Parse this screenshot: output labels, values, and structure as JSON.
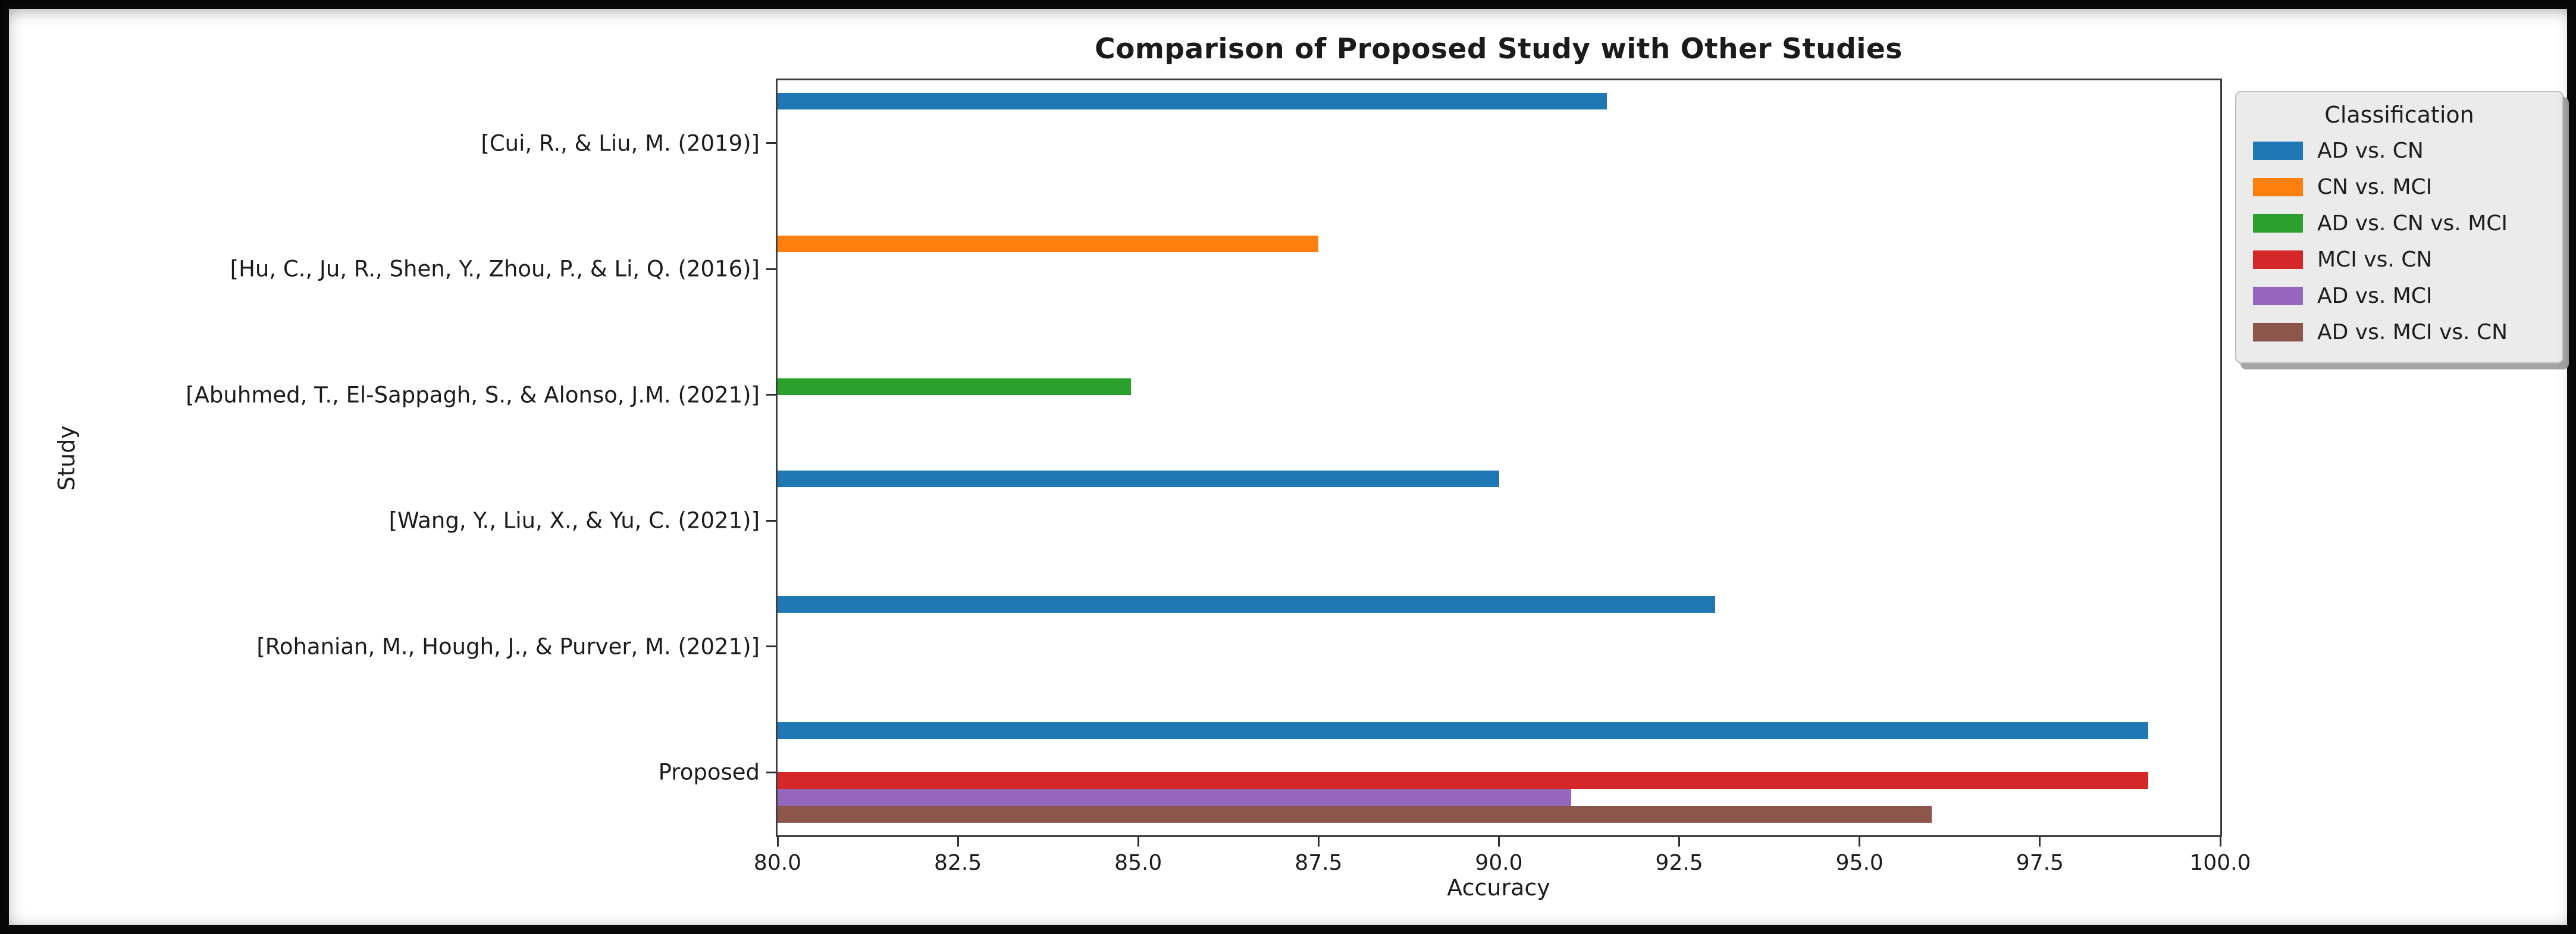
{
  "chart_data": {
    "type": "bar",
    "orientation": "horizontal",
    "title": "Comparison of Proposed Study with Other Studies",
    "xlabel": "Accuracy",
    "ylabel": "Study",
    "xlim": [
      80.0,
      100.0
    ],
    "xticks": [
      80.0,
      82.5,
      85.0,
      87.5,
      90.0,
      92.5,
      95.0,
      97.5,
      100.0
    ],
    "xtick_labels": [
      "80.0",
      "82.5",
      "85.0",
      "87.5",
      "90.0",
      "92.5",
      "95.0",
      "97.5",
      "100.0"
    ],
    "grid": false,
    "categories": [
      "[Cui, R., & Liu, M. (2019)]",
      "[Hu, C., Ju, R., Shen, Y., Zhou, P., & Li, Q. (2016)]",
      "[Abuhmed, T., El-Sappagh, S., & Alonso, J.M. (2021)]",
      "[Wang, Y., Liu, X., & Yu, C. (2021)]",
      "[Rohanian, M., Hough, J., & Purver, M. (2021)]",
      "Proposed"
    ],
    "series": [
      {
        "name": "AD vs. CN",
        "color": "#1f77b4",
        "values": [
          91.5,
          null,
          null,
          90.0,
          93.0,
          99.0
        ]
      },
      {
        "name": "CN vs. MCI",
        "color": "#ff7f0e",
        "values": [
          null,
          87.5,
          null,
          null,
          null,
          null
        ]
      },
      {
        "name": "AD vs. CN vs. MCI",
        "color": "#2ca02c",
        "values": [
          null,
          null,
          84.9,
          null,
          null,
          null
        ]
      },
      {
        "name": "MCI vs. CN",
        "color": "#d62728",
        "values": [
          null,
          null,
          null,
          null,
          null,
          99.0
        ]
      },
      {
        "name": "AD vs. MCI",
        "color": "#9467bd",
        "values": [
          null,
          null,
          null,
          null,
          null,
          91.0
        ]
      },
      {
        "name": "AD vs. MCI vs. CN",
        "color": "#8c564b",
        "values": [
          null,
          null,
          null,
          null,
          null,
          96.0
        ]
      }
    ],
    "legend": {
      "title": "Classification",
      "position": "upper-right-outside"
    }
  }
}
